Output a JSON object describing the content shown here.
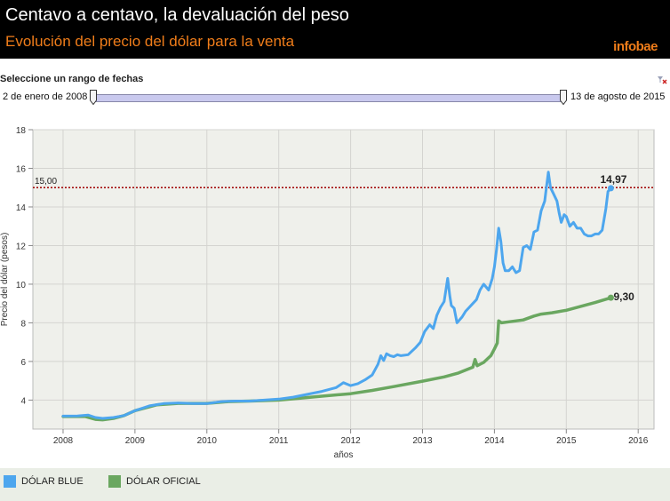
{
  "header": {
    "title": "Centavo a centavo, la devaluación del peso",
    "subtitle": "Evolución del precio del dólar para la venta",
    "logo": "infobae"
  },
  "range_selector": {
    "label": "Seleccione un rango de fechas",
    "start_label": "2 de enero de 2008",
    "end_label": "13 de agosto de 2015"
  },
  "colors": {
    "blue": "#4da6ee",
    "green": "#6aa760",
    "reference": "#a50f0f",
    "plot_bg": "#eff0eb",
    "accent": "#f07d1a"
  },
  "chart_data": {
    "type": "line",
    "xlabel": "años",
    "ylabel": "Precio del dólar (pesos)",
    "xlim": [
      2007.58,
      2016.22
    ],
    "ylim": [
      2.5,
      18
    ],
    "xticks": [
      "2008",
      "2009",
      "2010",
      "2011",
      "2012",
      "2013",
      "2014",
      "2015",
      "2016"
    ],
    "yticks": [
      "4",
      "6",
      "8",
      "10",
      "12",
      "14",
      "16",
      "18"
    ],
    "grid": true,
    "reference_line": {
      "value": 15.0,
      "label": "15,00"
    },
    "end_labels": {
      "blue": "14,97",
      "green": "9,30"
    },
    "legend_position": "bottom",
    "series": [
      {
        "name": "DÓLAR BLUE",
        "x": [
          2008.0,
          2008.2,
          2008.35,
          2008.45,
          2008.55,
          2008.7,
          2008.85,
          2009.0,
          2009.2,
          2009.4,
          2009.6,
          2009.8,
          2010.0,
          2010.2,
          2010.4,
          2010.6,
          2010.8,
          2011.0,
          2011.2,
          2011.4,
          2011.6,
          2011.8,
          2011.9,
          2012.0,
          2012.1,
          2012.2,
          2012.3,
          2012.38,
          2012.42,
          2012.46,
          2012.5,
          2012.55,
          2012.6,
          2012.65,
          2012.7,
          2012.8,
          2012.9,
          2012.97,
          2013.03,
          2013.1,
          2013.15,
          2013.2,
          2013.25,
          2013.3,
          2013.35,
          2013.38,
          2013.4,
          2013.44,
          2013.48,
          2013.55,
          2013.6,
          2013.65,
          2013.7,
          2013.75,
          2013.8,
          2013.85,
          2013.92,
          2013.97,
          2014.0,
          2014.03,
          2014.06,
          2014.09,
          2014.12,
          2014.15,
          2014.2,
          2014.25,
          2014.3,
          2014.35,
          2014.4,
          2014.45,
          2014.5,
          2014.55,
          2014.6,
          2014.65,
          2014.7,
          2014.72,
          2014.75,
          2014.78,
          2014.82,
          2014.87,
          2014.9,
          2014.93,
          2014.97,
          2015.0,
          2015.05,
          2015.1,
          2015.15,
          2015.2,
          2015.25,
          2015.3,
          2015.35,
          2015.4,
          2015.45,
          2015.5,
          2015.55,
          2015.58,
          2015.62
        ],
        "y": [
          3.17,
          3.18,
          3.22,
          3.1,
          3.05,
          3.1,
          3.2,
          3.45,
          3.7,
          3.82,
          3.85,
          3.82,
          3.82,
          3.92,
          3.95,
          3.95,
          4.0,
          4.05,
          4.15,
          4.3,
          4.45,
          4.65,
          4.9,
          4.75,
          4.85,
          5.05,
          5.3,
          5.85,
          6.3,
          6.05,
          6.4,
          6.3,
          6.25,
          6.35,
          6.3,
          6.35,
          6.7,
          7.0,
          7.55,
          7.9,
          7.7,
          8.4,
          8.8,
          9.1,
          10.3,
          9.4,
          8.9,
          8.75,
          8.0,
          8.3,
          8.6,
          8.8,
          9.0,
          9.2,
          9.7,
          10.0,
          9.7,
          10.3,
          10.9,
          11.8,
          12.9,
          12.2,
          11.1,
          10.7,
          10.7,
          10.9,
          10.6,
          10.7,
          11.9,
          12.0,
          11.8,
          12.7,
          12.8,
          13.8,
          14.3,
          14.9,
          15.8,
          15.0,
          14.7,
          14.3,
          13.7,
          13.2,
          13.6,
          13.5,
          13.0,
          13.2,
          12.9,
          12.9,
          12.6,
          12.5,
          12.5,
          12.6,
          12.6,
          12.8,
          13.9,
          14.8,
          14.97
        ]
      },
      {
        "name": "DÓLAR OFICIAL",
        "x": [
          2008.0,
          2008.3,
          2008.45,
          2008.55,
          2008.7,
          2008.85,
          2009.0,
          2009.3,
          2009.6,
          2010.0,
          2010.3,
          2010.6,
          2011.0,
          2011.3,
          2011.6,
          2012.0,
          2012.3,
          2012.6,
          2013.0,
          2013.3,
          2013.5,
          2013.7,
          2013.73,
          2013.76,
          2013.85,
          2013.95,
          2014.0,
          2014.04,
          2014.06,
          2014.1,
          2014.2,
          2014.4,
          2014.55,
          2014.65,
          2014.8,
          2015.0,
          2015.2,
          2015.4,
          2015.62
        ],
        "y": [
          3.15,
          3.16,
          3.0,
          2.98,
          3.05,
          3.2,
          3.45,
          3.75,
          3.83,
          3.83,
          3.92,
          3.95,
          4.0,
          4.1,
          4.2,
          4.33,
          4.5,
          4.7,
          4.98,
          5.2,
          5.4,
          5.7,
          6.1,
          5.78,
          5.95,
          6.3,
          6.65,
          6.95,
          8.1,
          8.0,
          8.05,
          8.15,
          8.35,
          8.45,
          8.52,
          8.65,
          8.85,
          9.05,
          9.3
        ]
      }
    ]
  }
}
